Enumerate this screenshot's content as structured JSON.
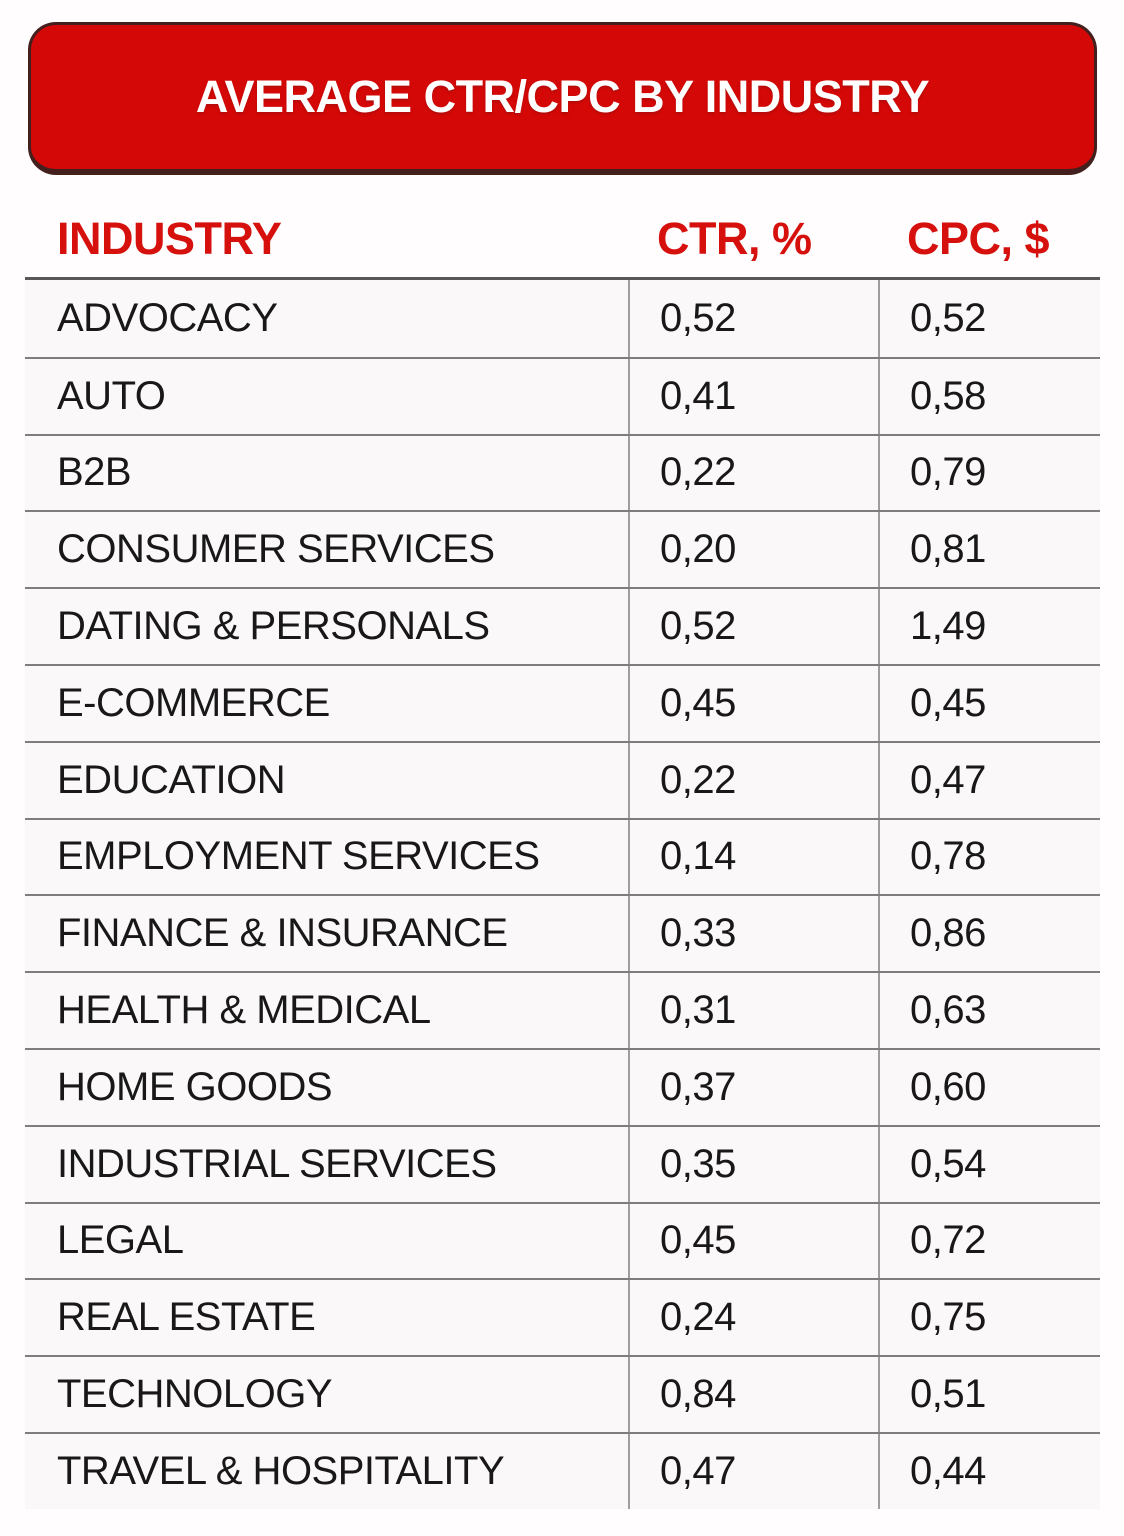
{
  "banner": {
    "title": "AVERAGE CTR/CPC BY INDUSTRY",
    "bg_color": "#d40806",
    "border_color": "#43201e",
    "text_color": "#ffffff"
  },
  "table": {
    "header_color": "#d5100d",
    "columns": [
      {
        "key": "industry",
        "label": "INDUSTRY"
      },
      {
        "key": "ctr",
        "label": "CTR, %"
      },
      {
        "key": "cpc",
        "label": "CPC, $"
      }
    ],
    "rows": [
      {
        "industry": "ADVOCACY",
        "ctr": "0,52",
        "cpc": "0,52"
      },
      {
        "industry": "AUTO",
        "ctr": "0,41",
        "cpc": "0,58"
      },
      {
        "industry": "B2B",
        "ctr": "0,22",
        "cpc": "0,79"
      },
      {
        "industry": "CONSUMER SERVICES",
        "ctr": "0,20",
        "cpc": "0,81"
      },
      {
        "industry": "DATING & PERSONALS",
        "ctr": "0,52",
        "cpc": "1,49"
      },
      {
        "industry": "E-COMMERCE",
        "ctr": "0,45",
        "cpc": "0,45"
      },
      {
        "industry": "EDUCATION",
        "ctr": "0,22",
        "cpc": "0,47"
      },
      {
        "industry": "EMPLOYMENT SERVICES",
        "ctr": "0,14",
        "cpc": "0,78"
      },
      {
        "industry": "FINANCE & INSURANCE",
        "ctr": "0,33",
        "cpc": "0,86"
      },
      {
        "industry": "HEALTH & MEDICAL",
        "ctr": "0,31",
        "cpc": "0,63"
      },
      {
        "industry": "HOME GOODS",
        "ctr": "0,37",
        "cpc": "0,60"
      },
      {
        "industry": "INDUSTRIAL SERVICES",
        "ctr": "0,35",
        "cpc": "0,54"
      },
      {
        "industry": "LEGAL",
        "ctr": "0,45",
        "cpc": "0,72"
      },
      {
        "industry": "REAL ESTATE",
        "ctr": "0,24",
        "cpc": "0,75"
      },
      {
        "industry": "TECHNOLOGY",
        "ctr": "0,84",
        "cpc": "0,51"
      },
      {
        "industry": "TRAVEL & HOSPITALITY",
        "ctr": "0,47",
        "cpc": "0,44"
      }
    ]
  },
  "chart_data": {
    "type": "table",
    "title": "AVERAGE CTR/CPC BY INDUSTRY",
    "columns": [
      "INDUSTRY",
      "CTR, %",
      "CPC, $"
    ],
    "decimal_separator": ",",
    "rows": [
      [
        "ADVOCACY",
        0.52,
        0.52
      ],
      [
        "AUTO",
        0.41,
        0.58
      ],
      [
        "B2B",
        0.22,
        0.79
      ],
      [
        "CONSUMER SERVICES",
        0.2,
        0.81
      ],
      [
        "DATING & PERSONALS",
        0.52,
        1.49
      ],
      [
        "E-COMMERCE",
        0.45,
        0.45
      ],
      [
        "EDUCATION",
        0.22,
        0.47
      ],
      [
        "EMPLOYMENT SERVICES",
        0.14,
        0.78
      ],
      [
        "FINANCE & INSURANCE",
        0.33,
        0.86
      ],
      [
        "HEALTH & MEDICAL",
        0.31,
        0.63
      ],
      [
        "HOME GOODS",
        0.37,
        0.6
      ],
      [
        "INDUSTRIAL SERVICES",
        0.35,
        0.54
      ],
      [
        "LEGAL",
        0.45,
        0.72
      ],
      [
        "REAL ESTATE",
        0.24,
        0.75
      ],
      [
        "TECHNOLOGY",
        0.84,
        0.51
      ],
      [
        "TRAVEL & HOSPITALITY",
        0.47,
        0.44
      ]
    ]
  }
}
